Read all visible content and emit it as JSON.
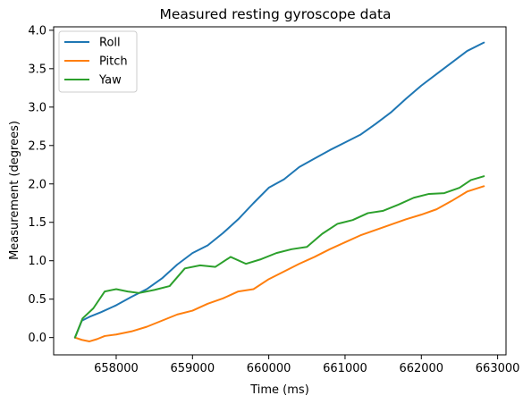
{
  "chart_data": {
    "type": "line",
    "title": "Measured resting gyroscope data",
    "xlabel": "Time (ms)",
    "ylabel": "Measurement (degrees)",
    "xlim": [
      657180,
      663110
    ],
    "ylim": [
      -0.225,
      4.045
    ],
    "xticks": [
      658000,
      659000,
      660000,
      661000,
      662000,
      663000
    ],
    "yticks": [
      0.0,
      0.5,
      1.0,
      1.5,
      2.0,
      2.5,
      3.0,
      3.5,
      4.0
    ],
    "xtick_labels": [
      "658000",
      "659000",
      "660000",
      "661000",
      "662000",
      "663000"
    ],
    "ytick_labels": [
      "0.0",
      "0.5",
      "1.0",
      "1.5",
      "2.0",
      "2.5",
      "3.0",
      "3.5",
      "4.0"
    ],
    "grid": false,
    "legend_position": "upper left",
    "series": [
      {
        "name": "Roll",
        "color": "#1f77b4",
        "points": [
          [
            657460,
            0.0
          ],
          [
            657550,
            0.22
          ],
          [
            657650,
            0.27
          ],
          [
            657800,
            0.33
          ],
          [
            658000,
            0.42
          ],
          [
            658200,
            0.53
          ],
          [
            658400,
            0.63
          ],
          [
            658600,
            0.77
          ],
          [
            658800,
            0.95
          ],
          [
            659000,
            1.1
          ],
          [
            659200,
            1.2
          ],
          [
            659400,
            1.36
          ],
          [
            659600,
            1.54
          ],
          [
            659800,
            1.75
          ],
          [
            660000,
            1.95
          ],
          [
            660200,
            2.06
          ],
          [
            660400,
            2.22
          ],
          [
            660600,
            2.33
          ],
          [
            660800,
            2.44
          ],
          [
            661000,
            2.54
          ],
          [
            661200,
            2.64
          ],
          [
            661400,
            2.78
          ],
          [
            661600,
            2.93
          ],
          [
            661800,
            3.11
          ],
          [
            662000,
            3.28
          ],
          [
            662200,
            3.43
          ],
          [
            662400,
            3.58
          ],
          [
            662600,
            3.73
          ],
          [
            662820,
            3.84
          ]
        ]
      },
      {
        "name": "Pitch",
        "color": "#ff7f0e",
        "points": [
          [
            657460,
            0.0
          ],
          [
            657550,
            -0.03
          ],
          [
            657650,
            -0.05
          ],
          [
            657750,
            -0.02
          ],
          [
            657850,
            0.02
          ],
          [
            658000,
            0.04
          ],
          [
            658200,
            0.08
          ],
          [
            658400,
            0.14
          ],
          [
            658600,
            0.22
          ],
          [
            658800,
            0.3
          ],
          [
            659000,
            0.35
          ],
          [
            659200,
            0.44
          ],
          [
            659400,
            0.51
          ],
          [
            659600,
            0.6
          ],
          [
            659800,
            0.63
          ],
          [
            660000,
            0.76
          ],
          [
            660200,
            0.86
          ],
          [
            660400,
            0.96
          ],
          [
            660600,
            1.05
          ],
          [
            660800,
            1.15
          ],
          [
            661000,
            1.24
          ],
          [
            661200,
            1.33
          ],
          [
            661400,
            1.4
          ],
          [
            661600,
            1.47
          ],
          [
            661800,
            1.54
          ],
          [
            662000,
            1.6
          ],
          [
            662200,
            1.67
          ],
          [
            662400,
            1.78
          ],
          [
            662600,
            1.9
          ],
          [
            662820,
            1.97
          ]
        ]
      },
      {
        "name": "Yaw",
        "color": "#2ca02c",
        "points": [
          [
            657460,
            0.0
          ],
          [
            657560,
            0.25
          ],
          [
            657700,
            0.38
          ],
          [
            657850,
            0.6
          ],
          [
            658000,
            0.63
          ],
          [
            658150,
            0.6
          ],
          [
            658300,
            0.58
          ],
          [
            658500,
            0.62
          ],
          [
            658700,
            0.67
          ],
          [
            658900,
            0.9
          ],
          [
            659100,
            0.94
          ],
          [
            659300,
            0.92
          ],
          [
            659500,
            1.05
          ],
          [
            659700,
            0.96
          ],
          [
            659900,
            1.02
          ],
          [
            660100,
            1.1
          ],
          [
            660300,
            1.15
          ],
          [
            660500,
            1.18
          ],
          [
            660700,
            1.35
          ],
          [
            660900,
            1.48
          ],
          [
            661100,
            1.53
          ],
          [
            661300,
            1.62
          ],
          [
            661500,
            1.65
          ],
          [
            661700,
            1.73
          ],
          [
            661900,
            1.82
          ],
          [
            662100,
            1.87
          ],
          [
            662300,
            1.88
          ],
          [
            662500,
            1.95
          ],
          [
            662650,
            2.05
          ],
          [
            662820,
            2.1
          ]
        ]
      }
    ]
  }
}
